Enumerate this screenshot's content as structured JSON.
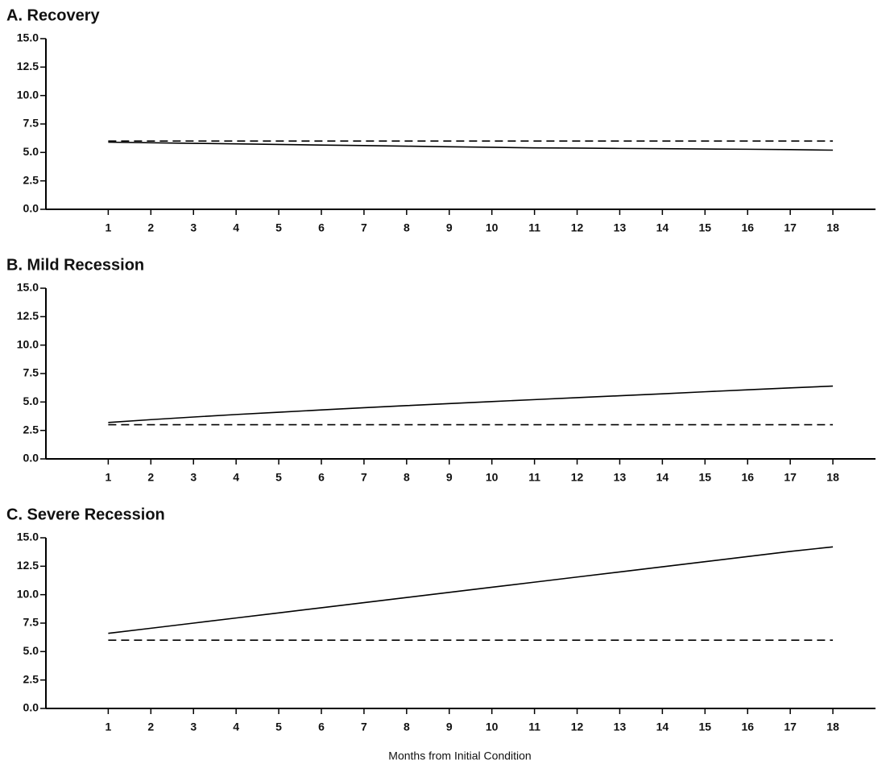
{
  "chart_data": [
    {
      "type": "line",
      "title": "A. Recovery",
      "x": [
        1,
        2,
        3,
        4,
        5,
        6,
        7,
        8,
        9,
        10,
        11,
        12,
        13,
        14,
        15,
        16,
        17,
        18
      ],
      "xlim": [
        -0.5,
        19
      ],
      "xticks": [
        1,
        2,
        3,
        4,
        5,
        6,
        7,
        8,
        9,
        10,
        11,
        12,
        13,
        14,
        15,
        16,
        17,
        18
      ],
      "ylim": [
        0,
        15
      ],
      "yticks": [
        {
          "value": 0,
          "label": "0.0"
        },
        2.5,
        {
          "value": 5,
          "label": "5.0"
        },
        7.5,
        {
          "value": 10,
          "label": "10.0"
        },
        12.5,
        {
          "value": 15,
          "label": "15.0"
        }
      ],
      "series": [
        {
          "color": "#000000",
          "dash": false,
          "values": [
            5.9,
            5.85,
            5.8,
            5.75,
            5.7,
            5.65,
            5.6,
            5.55,
            5.5,
            5.45,
            5.4,
            5.38,
            5.35,
            5.33,
            5.3,
            5.28,
            5.25,
            5.2
          ]
        },
        {
          "color": "#000000",
          "dash": true,
          "values": [
            6,
            6,
            6,
            6,
            6,
            6,
            6,
            6,
            6,
            6,
            6,
            6,
            6,
            6,
            6,
            6,
            6,
            6
          ]
        }
      ]
    },
    {
      "type": "line",
      "title": "B. Mild Recession",
      "x": [
        1,
        2,
        3,
        4,
        5,
        6,
        7,
        8,
        9,
        10,
        11,
        12,
        13,
        14,
        15,
        16,
        17,
        18
      ],
      "xlim": [
        -0.5,
        19
      ],
      "xticks": [
        1,
        2,
        3,
        4,
        5,
        6,
        7,
        8,
        9,
        10,
        11,
        12,
        13,
        14,
        15,
        16,
        17,
        18
      ],
      "ylim": [
        0,
        15
      ],
      "yticks": [
        {
          "value": 0,
          "label": "0.0"
        },
        2.5,
        {
          "value": 5,
          "label": "5.0"
        },
        7.5,
        {
          "value": 10,
          "label": "10.0"
        },
        12.5,
        {
          "value": 15,
          "label": "15.0"
        }
      ],
      "series": [
        {
          "color": "#000000",
          "dash": false,
          "values": [
            3.2,
            3.45,
            3.68,
            3.9,
            4.1,
            4.3,
            4.5,
            4.68,
            4.86,
            5.04,
            5.21,
            5.38,
            5.55,
            5.72,
            5.9,
            6.07,
            6.24,
            6.4
          ]
        },
        {
          "color": "#000000",
          "dash": true,
          "values": [
            3,
            3,
            3,
            3,
            3,
            3,
            3,
            3,
            3,
            3,
            3,
            3,
            3,
            3,
            3,
            3,
            3,
            3
          ]
        }
      ]
    },
    {
      "type": "line",
      "title": "C. Severe Recession",
      "x_label": "Months from Initial Condition",
      "x": [
        1,
        2,
        3,
        4,
        5,
        6,
        7,
        8,
        9,
        10,
        11,
        12,
        13,
        14,
        15,
        16,
        17,
        18
      ],
      "xlim": [
        -0.5,
        19
      ],
      "xticks": [
        1,
        2,
        3,
        4,
        5,
        6,
        7,
        8,
        9,
        10,
        11,
        12,
        13,
        14,
        15,
        16,
        17,
        18
      ],
      "ylim": [
        0,
        15
      ],
      "yticks": [
        {
          "value": 0,
          "label": "0.0"
        },
        2.5,
        {
          "value": 5,
          "label": "5.0"
        },
        7.5,
        {
          "value": 10,
          "label": "10.0"
        },
        12.5,
        {
          "value": 15,
          "label": "15.0"
        }
      ],
      "series": [
        {
          "color": "#000000",
          "dash": false,
          "values": [
            6.6,
            7.05,
            7.5,
            7.95,
            8.4,
            8.85,
            9.3,
            9.75,
            10.2,
            10.65,
            11.1,
            11.55,
            12.0,
            12.45,
            12.9,
            13.35,
            13.8,
            14.2
          ]
        },
        {
          "color": "#000000",
          "dash": true,
          "values": [
            6,
            6,
            6,
            6,
            6,
            6,
            6,
            6,
            6,
            6,
            6,
            6,
            6,
            6,
            6,
            6,
            6,
            6
          ]
        }
      ]
    }
  ]
}
